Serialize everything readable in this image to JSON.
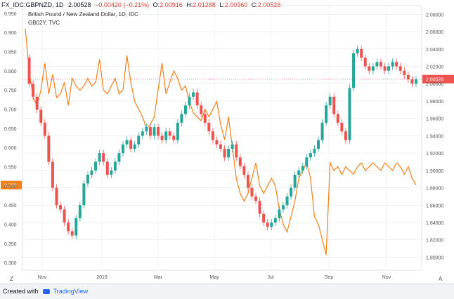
{
  "header": {
    "symbol": "FX_IDC:GBPNZD, 1D",
    "close_value": "2.00528",
    "change": "−0.00420 (−0.21%)",
    "open_label": "O:",
    "open_value": "2.00916",
    "high_label": "H:",
    "high_value": "2.01288",
    "low_label": "L:",
    "low_value": "2.00360",
    "close_label": "C:",
    "close_value2": "2.00528",
    "pair_name": "British Pound / New Zealand Dollar, 1D, IDC",
    "overlay_name": "GB02Y, TVC"
  },
  "footer": {
    "created_with": "Created with",
    "brand": "TradingView"
  },
  "controls": {
    "left_button": "Z",
    "right_button": "A"
  },
  "colors": {
    "up": "#26a69a",
    "down": "#ef5350",
    "overlay": "#f57f17",
    "price_line": "#ef5350",
    "grid": "#e6e6e6"
  },
  "chart_data": {
    "type": "line",
    "x_ticks": [
      "Nov",
      "2019",
      "Mar",
      "May",
      "Jul",
      "Sep",
      "Nov"
    ],
    "left_axis": {
      "ylim": [
        0.28,
        0.97
      ],
      "ticks": [
        "0.950",
        "0.900",
        "0.850",
        "0.800",
        "0.750",
        "0.700",
        "0.650",
        "0.600",
        "0.550",
        "0.500",
        "0.450",
        "0.400",
        "0.350",
        "0.300"
      ],
      "current_label": "0.502"
    },
    "right_axis": {
      "ylim": [
        1.785,
        2.09
      ],
      "ticks": [
        "2.08000",
        "2.06000",
        "2.04000",
        "2.02000",
        "2.00000",
        "1.98000",
        "1.96000",
        "1.94000",
        "1.92000",
        "1.90000",
        "1.88000",
        "1.86000",
        "1.84000",
        "1.82000",
        "1.80000"
      ],
      "current_label": "2.00528"
    },
    "series": [
      {
        "name": "GBP/NZD",
        "axis": "right",
        "style": "candlestick",
        "x": [
          0,
          9,
          18,
          27,
          36,
          45,
          54,
          63,
          72,
          81,
          90,
          99,
          108,
          117,
          126,
          135,
          144,
          153,
          162,
          171,
          180,
          189,
          198,
          207,
          216,
          225,
          234,
          243,
          252,
          261,
          270,
          279,
          288,
          297,
          306,
          315,
          324,
          333,
          342,
          351,
          360,
          369,
          378,
          387,
          396,
          405,
          414,
          423,
          432,
          441,
          450,
          459,
          468,
          477,
          486,
          495,
          504,
          513,
          522,
          531,
          540,
          549,
          558,
          567,
          576,
          585,
          594,
          603,
          612,
          621,
          630,
          639,
          648,
          657,
          666,
          675,
          684,
          693,
          702,
          711,
          720,
          729,
          738,
          747,
          756,
          765,
          774,
          783,
          792,
          801,
          810,
          819,
          828,
          837,
          846,
          855,
          864,
          873,
          882,
          891,
          900
        ],
        "y": [
          2.03,
          2.0,
          1.985,
          1.97,
          1.955,
          1.94,
          1.91,
          1.88,
          1.86,
          1.855,
          1.84,
          1.83,
          1.825,
          1.845,
          1.86,
          1.885,
          1.895,
          1.9,
          1.91,
          1.92,
          1.91,
          1.895,
          1.9,
          1.91,
          1.92,
          1.93,
          1.935,
          1.925,
          1.93,
          1.94,
          1.945,
          1.95,
          1.94,
          1.95,
          1.94,
          1.935,
          1.945,
          1.94,
          1.935,
          1.955,
          1.965,
          1.975,
          1.985,
          1.99,
          1.975,
          1.965,
          1.955,
          1.945,
          1.935,
          1.93,
          1.925,
          1.915,
          1.925,
          1.93,
          1.915,
          1.905,
          1.895,
          1.88,
          1.87,
          1.865,
          1.85,
          1.84,
          1.835,
          1.84,
          1.845,
          1.855,
          1.86,
          1.87,
          1.88,
          1.895,
          1.9,
          1.905,
          1.915,
          1.92,
          1.925,
          1.935,
          1.955,
          1.975,
          1.985,
          1.965,
          1.955,
          1.945,
          1.935,
          1.995,
          2.035,
          2.04,
          2.03,
          2.02,
          2.015,
          2.02,
          2.025,
          2.02,
          2.015,
          2.02,
          2.025,
          2.02,
          2.015,
          2.01,
          2.005,
          2.0,
          2.005
        ]
      },
      {
        "name": "GB02Y",
        "axis": "left",
        "style": "line",
        "x": [
          0,
          9,
          18,
          27,
          36,
          45,
          54,
          63,
          72,
          81,
          90,
          99,
          108,
          117,
          126,
          135,
          144,
          153,
          162,
          171,
          180,
          189,
          198,
          207,
          216,
          225,
          234,
          243,
          252,
          261,
          270,
          279,
          288,
          297,
          306,
          315,
          324,
          333,
          342,
          351,
          360,
          369,
          378,
          387,
          396,
          405,
          414,
          423,
          432,
          441,
          450,
          459,
          468,
          477,
          486,
          495,
          504,
          513,
          522,
          531,
          540,
          549,
          558,
          567,
          576,
          585,
          594,
          603,
          612,
          621,
          630,
          639,
          648,
          657,
          666,
          675,
          684,
          693,
          702,
          711,
          720,
          729,
          738,
          747,
          756,
          765,
          774,
          783,
          792,
          801,
          810,
          819,
          828,
          837,
          846,
          855,
          864,
          873,
          882,
          891,
          900
        ],
        "y": [
          0.91,
          0.8,
          0.73,
          0.71,
          0.75,
          0.82,
          0.74,
          0.79,
          0.73,
          0.74,
          0.77,
          0.71,
          0.78,
          0.76,
          0.75,
          0.76,
          0.78,
          0.76,
          0.77,
          0.83,
          0.75,
          0.74,
          0.76,
          0.78,
          0.74,
          0.75,
          0.84,
          0.77,
          0.72,
          0.7,
          0.68,
          0.65,
          0.66,
          0.68,
          0.75,
          0.82,
          0.74,
          0.77,
          0.8,
          0.78,
          0.75,
          0.76,
          0.72,
          0.69,
          0.68,
          0.67,
          0.7,
          0.68,
          0.7,
          0.72,
          0.66,
          0.62,
          0.68,
          0.6,
          0.52,
          0.48,
          0.46,
          0.48,
          0.52,
          0.56,
          0.5,
          0.48,
          0.5,
          0.52,
          0.5,
          0.44,
          0.4,
          0.38,
          0.42,
          0.46,
          0.52,
          0.54,
          0.56,
          0.52,
          0.42,
          0.4,
          0.36,
          0.32,
          0.56,
          0.54,
          0.55,
          0.53,
          0.55,
          0.54,
          0.53,
          0.55,
          0.56,
          0.54,
          0.55,
          0.56,
          0.55,
          0.54,
          0.56,
          0.55,
          0.54,
          0.56,
          0.55,
          0.53,
          0.55,
          0.52,
          0.502
        ]
      }
    ],
    "grid": true,
    "legend": "top-left"
  }
}
